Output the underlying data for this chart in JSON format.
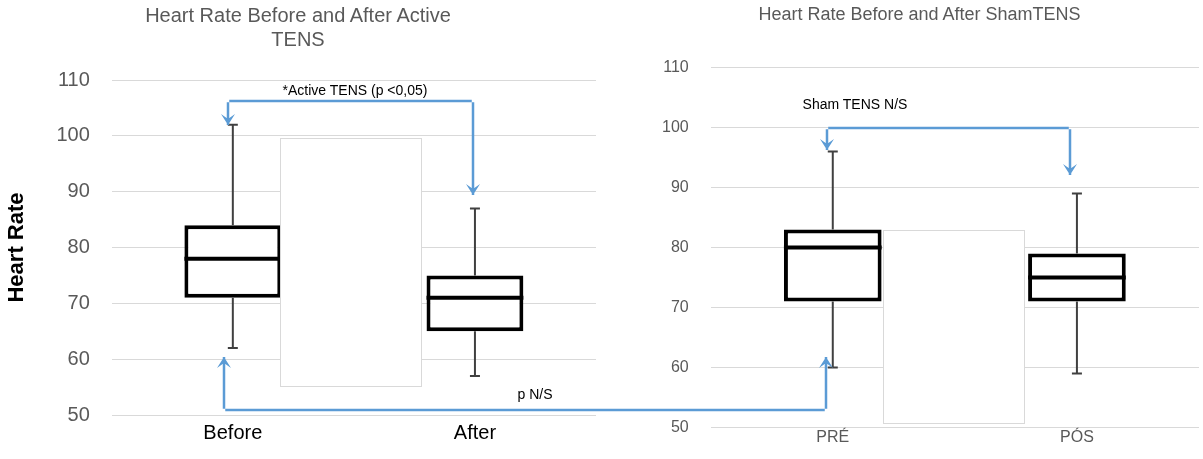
{
  "chart_data": [
    {
      "type": "box",
      "title": [
        "Heart Rate Before and After Active",
        "TENS"
      ],
      "ylabel": "Heart Rate",
      "categories": [
        "Before",
        "After"
      ],
      "boxes": [
        {
          "low": 62,
          "q1": 71,
          "median": 78,
          "q3": 84,
          "high": 102
        },
        {
          "low": 57,
          "q1": 65,
          "median": 71,
          "q3": 75,
          "high": 87
        }
      ],
      "ylim": [
        50,
        110
      ],
      "yticks": [
        50,
        60,
        70,
        80,
        90,
        100,
        110
      ],
      "grid": "y",
      "annotations": [
        "*Active TENS (p <0,05)",
        "p N/S"
      ]
    },
    {
      "type": "box",
      "title": "Heart Rate Before and After ShamTENS",
      "categories": [
        "PRÉ",
        "PÓS"
      ],
      "boxes": [
        {
          "low": 60,
          "q1": 71,
          "median": 80,
          "q3": 83,
          "high": 96
        },
        {
          "low": 59,
          "q1": 71,
          "median": 75,
          "q3": 79,
          "high": 89
        }
      ],
      "ylim": [
        50,
        110
      ],
      "yticks": [
        50,
        60,
        70,
        80,
        90,
        100,
        110
      ],
      "grid": "y",
      "annotations": [
        "Sham TENS N/S"
      ]
    }
  ]
}
